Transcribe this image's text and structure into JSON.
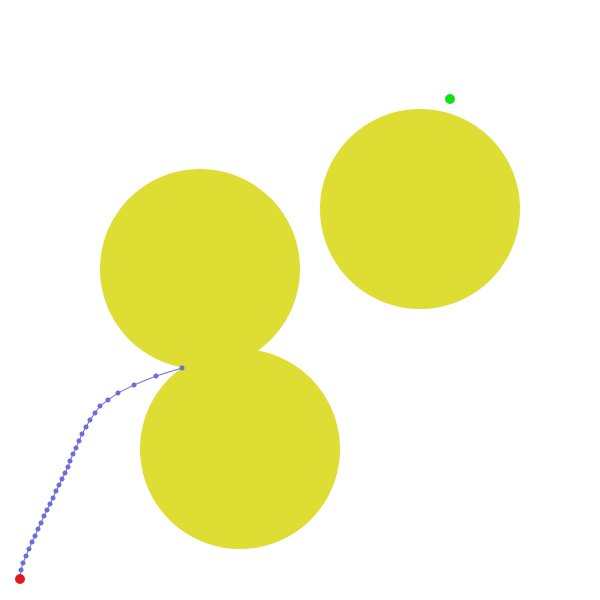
{
  "scene": {
    "background": "#ffffff",
    "obstacle_color": "#dddd33",
    "path_color": "#6b6bd9",
    "start_color": "#e01a1a",
    "goal_color": "#11e011"
  }
}
